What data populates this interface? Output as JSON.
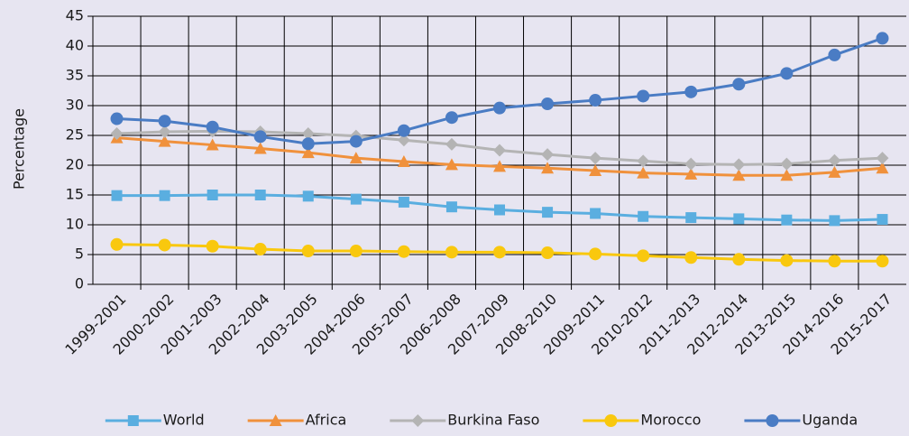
{
  "chart_data": {
    "type": "line",
    "y_label": "Percentage",
    "categories": [
      "1999-2001",
      "2000-2002",
      "2001-2003",
      "2002-2004",
      "2003-2005",
      "2004-2006",
      "2005-2007",
      "2006-2008",
      "2007-2009",
      "2008-2010",
      "2009-2011",
      "2010-2012",
      "2011-2013",
      "2012-2014",
      "2013-2015",
      "2014-2016",
      "2015-2017"
    ],
    "series": [
      {
        "name": "World",
        "color": "#5aaee0",
        "marker": "square",
        "values": [
          14.9,
          14.9,
          15.0,
          15.0,
          14.8,
          14.3,
          13.8,
          13.0,
          12.5,
          12.1,
          11.9,
          11.4,
          11.2,
          11.0,
          10.8,
          10.7,
          10.9
        ]
      },
      {
        "name": "Africa",
        "color": "#f0913c",
        "marker": "triangle",
        "values": [
          24.6,
          24.0,
          23.4,
          22.8,
          22.1,
          21.2,
          20.6,
          20.1,
          19.8,
          19.5,
          19.1,
          18.7,
          18.5,
          18.3,
          18.3,
          18.8,
          19.5
        ]
      },
      {
        "name": "Burkina Faso",
        "color": "#b4b4b4",
        "marker": "diamond",
        "values": [
          25.3,
          25.6,
          25.7,
          25.6,
          25.3,
          24.9,
          24.2,
          23.5,
          22.5,
          21.8,
          21.2,
          20.7,
          20.2,
          20.1,
          20.2,
          20.8,
          21.2
        ]
      },
      {
        "name": "Morocco",
        "color": "#f9c80e",
        "marker": "circle",
        "values": [
          6.7,
          6.6,
          6.4,
          5.9,
          5.6,
          5.6,
          5.5,
          5.4,
          5.4,
          5.3,
          5.1,
          4.8,
          4.5,
          4.2,
          4.0,
          3.9,
          3.9
        ]
      },
      {
        "name": "Uganda",
        "color": "#4a7cc4",
        "marker": "circle",
        "values": [
          27.8,
          27.4,
          26.4,
          24.8,
          23.6,
          24.0,
          25.8,
          28.0,
          29.6,
          30.3,
          30.9,
          31.6,
          32.3,
          33.6,
          35.4,
          38.5,
          41.3
        ]
      }
    ],
    "ylim": [
      0,
      45
    ],
    "yticks": [
      0,
      5,
      10,
      15,
      20,
      25,
      30,
      35,
      40,
      45
    ],
    "grid": true,
    "legend": "bottom"
  }
}
